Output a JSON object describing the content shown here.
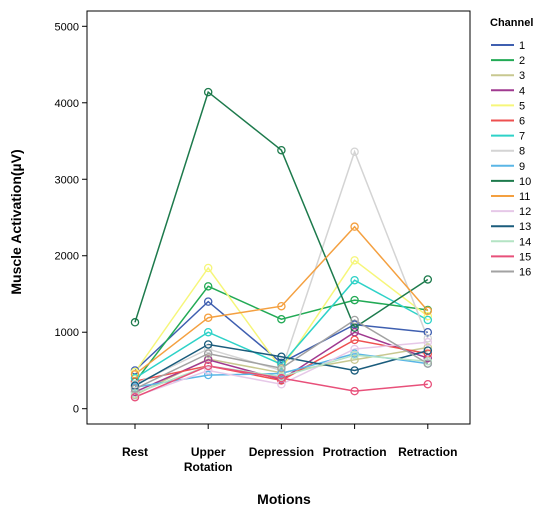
{
  "chart_data": {
    "type": "line",
    "title": "",
    "xlabel": "Motions",
    "ylabel": "Muscle Activation(µV)",
    "categories": [
      "Rest",
      "Upper Rotation",
      "Depression",
      "Protraction",
      "Retraction"
    ],
    "category_lines": [
      [
        "Rest"
      ],
      [
        "Upper",
        "Rotation"
      ],
      [
        "Depression"
      ],
      [
        "Protraction"
      ],
      [
        "Retraction"
      ]
    ],
    "ylim": [
      -200,
      5200
    ],
    "yticks": [
      0,
      1000,
      2000,
      3000,
      4000,
      5000
    ],
    "ytick_labels": [
      "0",
      "1000",
      "2000",
      "3000",
      "4000",
      "5000"
    ],
    "grid": false,
    "legend_title": "Channel",
    "legend_position": "right",
    "series": [
      {
        "name": "1",
        "color": "#3f5fb0",
        "values": [
          500,
          1400,
          600,
          1100,
          1000
        ]
      },
      {
        "name": "2",
        "color": "#22aa55",
        "values": [
          350,
          1600,
          1170,
          1420,
          1290
        ]
      },
      {
        "name": "3",
        "color": "#c8c890",
        "values": [
          180,
          650,
          470,
          640,
          800
        ]
      },
      {
        "name": "4",
        "color": "#a03a90",
        "values": [
          220,
          640,
          380,
          1000,
          660
        ]
      },
      {
        "name": "5",
        "color": "#f6f67a",
        "values": [
          480,
          1840,
          520,
          1940,
          1210
        ]
      },
      {
        "name": "6",
        "color": "#ee5050",
        "values": [
          360,
          560,
          370,
          900,
          720
        ]
      },
      {
        "name": "7",
        "color": "#2ed2c8",
        "values": [
          400,
          1000,
          580,
          1680,
          1160
        ]
      },
      {
        "name": "8",
        "color": "#d4d4d4",
        "values": [
          320,
          780,
          500,
          3360,
          920
        ]
      },
      {
        "name": "9",
        "color": "#5ab6e6",
        "values": [
          280,
          440,
          460,
          720,
          590
        ]
      },
      {
        "name": "10",
        "color": "#1d7a4c",
        "values": [
          1130,
          4140,
          3380,
          1060,
          1690
        ]
      },
      {
        "name": "11",
        "color": "#f4a040",
        "values": [
          450,
          1190,
          1340,
          2380,
          1280
        ]
      },
      {
        "name": "12",
        "color": "#e6c8e8",
        "values": [
          160,
          500,
          320,
          780,
          870
        ]
      },
      {
        "name": "13",
        "color": "#1a5c7c",
        "values": [
          300,
          840,
          680,
          500,
          760
        ]
      },
      {
        "name": "14",
        "color": "#b4e4c4",
        "values": [
          200,
          560,
          420,
          700,
          620
        ]
      },
      {
        "name": "15",
        "color": "#e8507a",
        "values": [
          150,
          560,
          400,
          230,
          320
        ]
      },
      {
        "name": "16",
        "color": "#a2a2a2",
        "values": [
          260,
          720,
          530,
          1160,
          590
        ]
      }
    ]
  }
}
